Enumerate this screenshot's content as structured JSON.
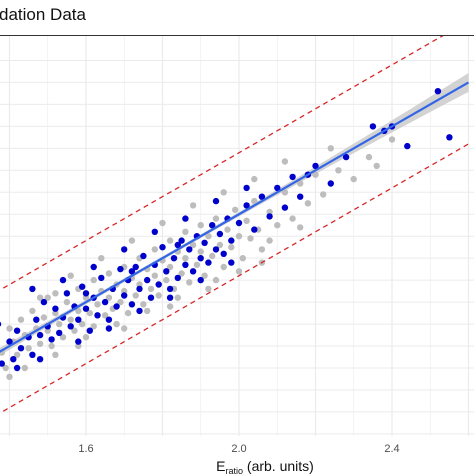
{
  "title_fragment": "dation Data",
  "chart_data": {
    "type": "scatter",
    "title": "dation Data",
    "xlabel_main": "E",
    "xlabel_sub": "ratio",
    "xlabel_rest": " (arb. units)",
    "ylabel": "",
    "xlim": [
      1.2,
      2.6
    ],
    "ylim": [
      1.2,
      2.6
    ],
    "x_ticks": [
      1.6,
      2.0,
      2.4
    ],
    "grid": true,
    "colors": {
      "fit_line": "#3366e6",
      "band": "#d62728",
      "ci_ribbon": "#c8c8c8",
      "gray_points": "#bdbdbd",
      "blue_points": "#0000cc",
      "grid": "#ebebeb"
    },
    "fit": {
      "slope": 1.0,
      "intercept": 0.0,
      "x_range": [
        1.2,
        2.6
      ]
    },
    "prediction_band_offset": 0.28,
    "series": [
      {
        "name": "",
        "color": "#bdbdbd",
        "points": [
          [
            1.22,
            1.23
          ],
          [
            1.25,
            1.31
          ],
          [
            1.27,
            1.28
          ],
          [
            1.3,
            1.36
          ],
          [
            1.32,
            1.27
          ],
          [
            1.33,
            1.41
          ],
          [
            1.35,
            1.33
          ],
          [
            1.36,
            1.46
          ],
          [
            1.38,
            1.37
          ],
          [
            1.39,
            1.3
          ],
          [
            1.4,
            1.48
          ],
          [
            1.41,
            1.42
          ],
          [
            1.42,
            1.36
          ],
          [
            1.43,
            1.52
          ],
          [
            1.44,
            1.45
          ],
          [
            1.45,
            1.39
          ],
          [
            1.46,
            1.56
          ],
          [
            1.47,
            1.48
          ],
          [
            1.48,
            1.41
          ],
          [
            1.49,
            1.53
          ],
          [
            1.5,
            1.47
          ],
          [
            1.5,
            1.62
          ],
          [
            1.51,
            1.4
          ],
          [
            1.52,
            1.55
          ],
          [
            1.53,
            1.5
          ],
          [
            1.54,
            1.44
          ],
          [
            1.55,
            1.6
          ],
          [
            1.56,
            1.52
          ],
          [
            1.57,
            1.47
          ],
          [
            1.58,
            1.66
          ],
          [
            1.58,
            1.56
          ],
          [
            1.59,
            1.5
          ],
          [
            1.6,
            1.62
          ],
          [
            1.61,
            1.55
          ],
          [
            1.62,
            1.7
          ],
          [
            1.62,
            1.49
          ],
          [
            1.63,
            1.59
          ],
          [
            1.64,
            1.65
          ],
          [
            1.65,
            1.54
          ],
          [
            1.66,
            1.73
          ],
          [
            1.66,
            1.62
          ],
          [
            1.67,
            1.57
          ],
          [
            1.68,
            1.68
          ],
          [
            1.69,
            1.6
          ],
          [
            1.7,
            1.76
          ],
          [
            1.7,
            1.65
          ],
          [
            1.71,
            1.55
          ],
          [
            1.72,
            1.71
          ],
          [
            1.73,
            1.63
          ],
          [
            1.74,
            1.8
          ],
          [
            1.74,
            1.68
          ],
          [
            1.75,
            1.59
          ],
          [
            1.76,
            1.75
          ],
          [
            1.77,
            1.66
          ],
          [
            1.78,
            1.84
          ],
          [
            1.78,
            1.72
          ],
          [
            1.79,
            1.63
          ],
          [
            1.8,
            1.79
          ],
          [
            1.81,
            1.7
          ],
          [
            1.82,
            1.88
          ],
          [
            1.82,
            1.76
          ],
          [
            1.83,
            1.66
          ],
          [
            1.84,
            1.83
          ],
          [
            1.85,
            1.73
          ],
          [
            1.86,
            1.92
          ],
          [
            1.86,
            1.8
          ],
          [
            1.87,
            1.69
          ],
          [
            1.88,
            1.86
          ],
          [
            1.89,
            1.77
          ],
          [
            1.9,
            1.95
          ],
          [
            1.9,
            1.83
          ],
          [
            1.91,
            1.72
          ],
          [
            1.92,
            1.9
          ],
          [
            1.93,
            1.81
          ],
          [
            1.94,
            1.98
          ],
          [
            1.95,
            1.86
          ],
          [
            1.96,
            1.76
          ],
          [
            1.97,
            1.93
          ],
          [
            1.98,
            1.85
          ],
          [
            1.99,
            2.02
          ],
          [
            2.0,
            1.9
          ],
          [
            2.01,
            1.8
          ],
          [
            2.02,
            1.97
          ],
          [
            2.03,
            1.89
          ],
          [
            2.04,
            2.06
          ],
          [
            2.05,
            1.93
          ],
          [
            2.06,
            1.84
          ],
          [
            2.08,
            2.01
          ],
          [
            2.1,
            1.95
          ],
          [
            2.12,
            2.1
          ],
          [
            2.14,
            1.98
          ],
          [
            2.16,
            2.14
          ],
          [
            2.18,
            2.05
          ],
          [
            2.2,
            2.18
          ],
          [
            2.22,
            2.09
          ],
          [
            2.26,
            2.2
          ],
          [
            2.3,
            2.16
          ],
          [
            2.34,
            2.26
          ],
          [
            1.44,
            1.3
          ],
          [
            1.52,
            1.36
          ],
          [
            1.6,
            1.44
          ],
          [
            1.68,
            1.5
          ],
          [
            1.76,
            1.56
          ],
          [
            1.84,
            1.62
          ],
          [
            1.92,
            1.66
          ],
          [
            2.0,
            1.74
          ],
          [
            1.48,
            1.62
          ],
          [
            1.56,
            1.72
          ],
          [
            1.64,
            1.8
          ],
          [
            1.72,
            1.88
          ],
          [
            1.8,
            1.96
          ],
          [
            1.88,
            2.04
          ],
          [
            1.96,
            2.1
          ],
          [
            2.04,
            2.16
          ],
          [
            2.12,
            2.24
          ],
          [
            2.24,
            2.3
          ],
          [
            2.36,
            2.22
          ],
          [
            2.4,
            2.34
          ],
          [
            1.34,
            1.22
          ],
          [
            1.4,
            1.26
          ],
          [
            2.08,
            1.88
          ],
          [
            2.16,
            1.94
          ],
          [
            1.58,
            1.4
          ],
          [
            1.7,
            1.48
          ],
          [
            1.82,
            1.58
          ],
          [
            1.94,
            1.7
          ],
          [
            2.06,
            1.78
          ],
          [
            1.52,
            1.64
          ]
        ]
      },
      {
        "name": "",
        "color": "#0000cc",
        "points": [
          [
            1.2,
            1.3
          ],
          [
            1.23,
            1.2
          ],
          [
            1.24,
            1.34
          ],
          [
            1.26,
            1.26
          ],
          [
            1.28,
            1.38
          ],
          [
            1.29,
            1.22
          ],
          [
            1.31,
            1.32
          ],
          [
            1.32,
            1.44
          ],
          [
            1.34,
            1.28
          ],
          [
            1.35,
            1.38
          ],
          [
            1.37,
            1.5
          ],
          [
            1.38,
            1.32
          ],
          [
            1.4,
            1.42
          ],
          [
            1.41,
            1.34
          ],
          [
            1.42,
            1.47
          ],
          [
            1.43,
            1.39
          ],
          [
            1.45,
            1.44
          ],
          [
            1.46,
            1.36
          ],
          [
            1.47,
            1.52
          ],
          [
            1.48,
            1.45
          ],
          [
            1.49,
            1.6
          ],
          [
            1.5,
            1.49
          ],
          [
            1.51,
            1.43
          ],
          [
            1.52,
            1.57
          ],
          [
            1.53,
            1.46
          ],
          [
            1.54,
            1.53
          ],
          [
            1.55,
            1.64
          ],
          [
            1.56,
            1.49
          ],
          [
            1.57,
            1.58
          ],
          [
            1.58,
            1.52
          ],
          [
            1.59,
            1.67
          ],
          [
            1.6,
            1.57
          ],
          [
            1.61,
            1.47
          ],
          [
            1.62,
            1.62
          ],
          [
            1.63,
            1.54
          ],
          [
            1.64,
            1.71
          ],
          [
            1.65,
            1.6
          ],
          [
            1.66,
            1.52
          ],
          [
            1.67,
            1.66
          ],
          [
            1.68,
            1.58
          ],
          [
            1.69,
            1.75
          ],
          [
            1.7,
            1.63
          ],
          [
            1.71,
            1.7
          ],
          [
            1.72,
            1.59
          ],
          [
            1.73,
            1.76
          ],
          [
            1.74,
            1.66
          ],
          [
            1.75,
            1.81
          ],
          [
            1.76,
            1.7
          ],
          [
            1.77,
            1.62
          ],
          [
            1.78,
            1.77
          ],
          [
            1.79,
            1.68
          ],
          [
            1.8,
            1.85
          ],
          [
            1.81,
            1.74
          ],
          [
            1.82,
            1.66
          ],
          [
            1.83,
            1.8
          ],
          [
            1.84,
            1.71
          ],
          [
            1.85,
            1.88
          ],
          [
            1.86,
            1.77
          ],
          [
            1.87,
            1.84
          ],
          [
            1.88,
            1.74
          ],
          [
            1.89,
            1.9
          ],
          [
            1.9,
            1.8
          ],
          [
            1.91,
            1.87
          ],
          [
            1.92,
            1.78
          ],
          [
            1.93,
            1.95
          ],
          [
            1.94,
            1.84
          ],
          [
            1.95,
            1.91
          ],
          [
            1.96,
            1.82
          ],
          [
            1.97,
            1.98
          ],
          [
            1.98,
            1.88
          ],
          [
            2.0,
            1.96
          ],
          [
            2.02,
            2.04
          ],
          [
            2.04,
            1.93
          ],
          [
            2.06,
            2.08
          ],
          [
            2.08,
            1.99
          ],
          [
            2.1,
            2.12
          ],
          [
            2.12,
            2.03
          ],
          [
            2.14,
            2.17
          ],
          [
            2.16,
            2.08
          ],
          [
            2.2,
            2.22
          ],
          [
            2.24,
            2.14
          ],
          [
            2.28,
            2.26
          ],
          [
            2.35,
            2.4
          ],
          [
            2.38,
            2.38
          ],
          [
            2.4,
            2.4
          ],
          [
            2.44,
            2.31
          ],
          [
            2.52,
            2.56
          ],
          [
            2.55,
            2.35
          ],
          [
            1.46,
            1.66
          ],
          [
            1.54,
            1.7
          ],
          [
            1.62,
            1.76
          ],
          [
            1.7,
            1.84
          ],
          [
            1.78,
            1.92
          ],
          [
            1.86,
            1.98
          ],
          [
            1.94,
            2.06
          ],
          [
            2.02,
            2.12
          ],
          [
            1.36,
            1.22
          ],
          [
            1.48,
            1.34
          ],
          [
            1.58,
            1.42
          ],
          [
            1.66,
            1.48
          ],
          [
            1.74,
            1.56
          ],
          [
            1.82,
            1.62
          ],
          [
            1.9,
            1.7
          ],
          [
            1.98,
            1.78
          ],
          [
            1.21,
            1.24
          ],
          [
            1.3,
            1.28
          ],
          [
            1.42,
            1.3
          ],
          [
            2.18,
            2.18
          ],
          [
            1.28,
            1.44
          ],
          [
            1.6,
            1.64
          ],
          [
            1.72,
            1.74
          ],
          [
            1.84,
            1.86
          ]
        ]
      }
    ]
  }
}
